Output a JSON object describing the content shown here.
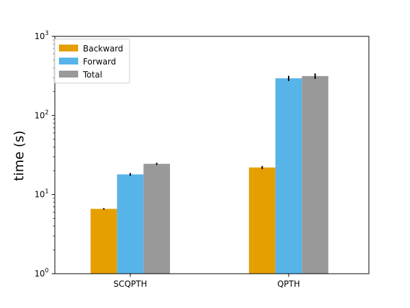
{
  "chart_data": {
    "type": "bar",
    "title": "",
    "xlabel": "",
    "ylabel": "time (s)",
    "yscale": "log",
    "ylim": [
      1,
      1000
    ],
    "categories": [
      "SCQPTH",
      "QPTH"
    ],
    "yticks": [
      {
        "base": "10",
        "exp": "0"
      },
      {
        "base": "10",
        "exp": "1"
      },
      {
        "base": "10",
        "exp": "2"
      },
      {
        "base": "10",
        "exp": "3"
      }
    ],
    "series": [
      {
        "name": "Backward",
        "color": "#E69F00",
        "values": [
          6.6,
          22
        ],
        "error": [
          0.15,
          1.0
        ]
      },
      {
        "name": "Forward",
        "color": "#56B4E9",
        "values": [
          18,
          295
        ],
        "error": [
          0.7,
          22
        ]
      },
      {
        "name": "Total",
        "color": "#999999",
        "values": [
          24.5,
          315
        ],
        "error": [
          0.8,
          25
        ]
      }
    ],
    "legend": "top-left",
    "grid": false
  }
}
